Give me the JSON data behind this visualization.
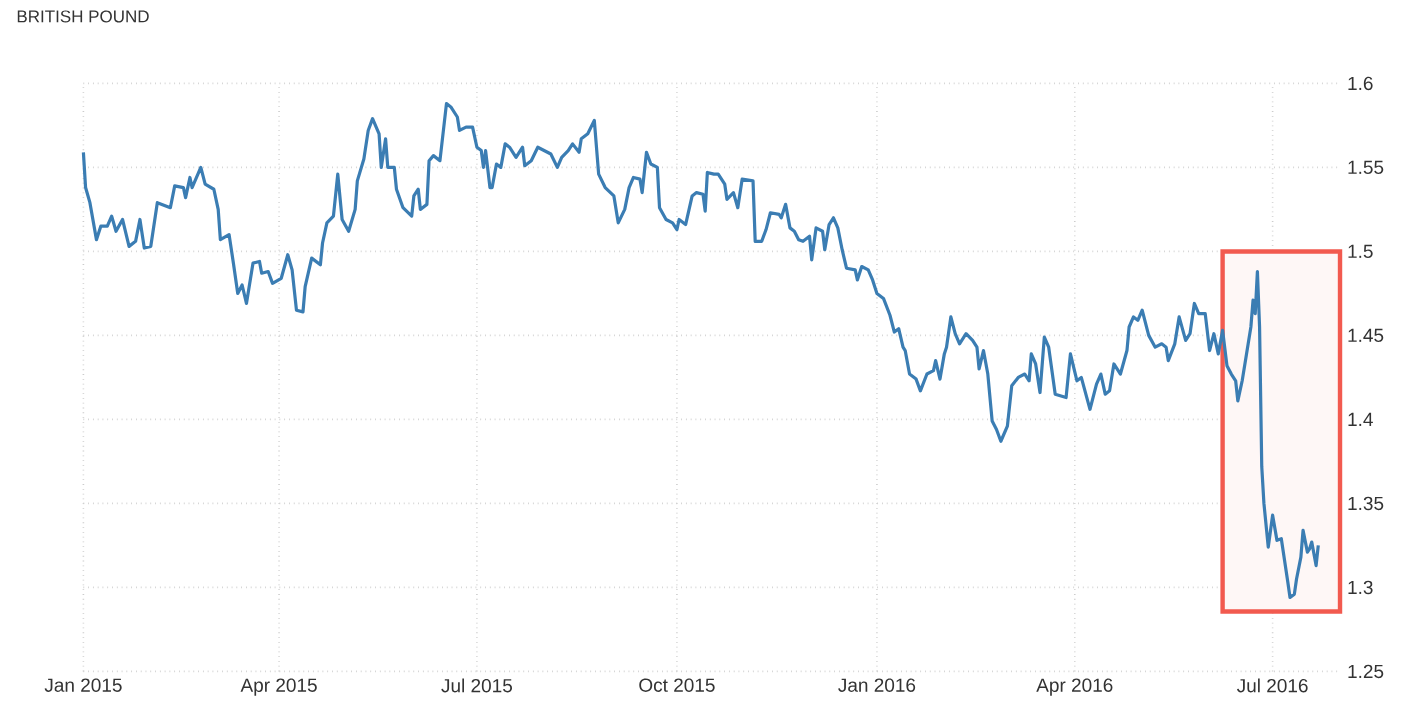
{
  "chart_data": {
    "type": "line",
    "title": "BRITISH POUND",
    "x": [
      "2015-01-01",
      "2015-01-02",
      "2015-01-04",
      "2015-01-07",
      "2015-01-09",
      "2015-01-12",
      "2015-01-14",
      "2015-01-16",
      "2015-01-19",
      "2015-01-22",
      "2015-01-25",
      "2015-01-27",
      "2015-01-29",
      "2015-02-01",
      "2015-02-04",
      "2015-02-10",
      "2015-02-12",
      "2015-02-16",
      "2015-02-17",
      "2015-02-19",
      "2015-02-20",
      "2015-02-24",
      "2015-02-26",
      "2015-03-02",
      "2015-03-04",
      "2015-03-05",
      "2015-03-09",
      "2015-03-11",
      "2015-03-13",
      "2015-03-15",
      "2015-03-17",
      "2015-03-20",
      "2015-03-23",
      "2015-03-24",
      "2015-03-27",
      "2015-03-29",
      "2015-04-02",
      "2015-04-05",
      "2015-04-07",
      "2015-04-09",
      "2015-04-12",
      "2015-04-13",
      "2015-04-16",
      "2015-04-20",
      "2015-04-21",
      "2015-04-23",
      "2015-04-26",
      "2015-04-28",
      "2015-04-30",
      "2015-05-03",
      "2015-05-06",
      "2015-05-07",
      "2015-05-10",
      "2015-05-12",
      "2015-05-14",
      "2015-05-17",
      "2015-05-18",
      "2015-05-20",
      "2015-05-21",
      "2015-05-24",
      "2015-05-25",
      "2015-05-28",
      "2015-06-01",
      "2015-06-02",
      "2015-06-04",
      "2015-06-05",
      "2015-06-08",
      "2015-06-09",
      "2015-06-11",
      "2015-06-14",
      "2015-06-17",
      "2015-06-19",
      "2015-06-22",
      "2015-06-23",
      "2015-06-26",
      "2015-06-29",
      "2015-07-01",
      "2015-07-03",
      "2015-07-04",
      "2015-07-05",
      "2015-07-07",
      "2015-07-08",
      "2015-07-10",
      "2015-07-12",
      "2015-07-14",
      "2015-07-16",
      "2015-07-19",
      "2015-07-22",
      "2015-07-23",
      "2015-07-26",
      "2015-07-29",
      "2015-08-01",
      "2015-08-04",
      "2015-08-07",
      "2015-08-09",
      "2015-08-12",
      "2015-08-14",
      "2015-08-17",
      "2015-08-18",
      "2015-08-21",
      "2015-08-24",
      "2015-08-26",
      "2015-08-29",
      "2015-09-02",
      "2015-09-04",
      "2015-09-07",
      "2015-09-09",
      "2015-09-11",
      "2015-09-14",
      "2015-09-15",
      "2015-09-17",
      "2015-09-19",
      "2015-09-22",
      "2015-09-23",
      "2015-09-26",
      "2015-09-29",
      "2015-10-01",
      "2015-10-02",
      "2015-10-05",
      "2015-10-08",
      "2015-10-10",
      "2015-10-13",
      "2015-10-14",
      "2015-10-15",
      "2015-10-18",
      "2015-10-20",
      "2015-10-23",
      "2015-10-24",
      "2015-10-27",
      "2015-10-29",
      "2015-10-31",
      "2015-11-05",
      "2015-11-06",
      "2015-11-09",
      "2015-11-11",
      "2015-11-13",
      "2015-11-17",
      "2015-11-18",
      "2015-11-20",
      "2015-11-22",
      "2015-11-24",
      "2015-11-26",
      "2015-11-28",
      "2015-12-01",
      "2015-12-02",
      "2015-12-04",
      "2015-12-07",
      "2015-12-08",
      "2015-12-10",
      "2015-12-12",
      "2015-12-14",
      "2015-12-16",
      "2015-12-18",
      "2015-12-22",
      "2015-12-23",
      "2015-12-25",
      "2015-12-28",
      "2015-12-30",
      "2016-01-01",
      "2016-01-04",
      "2016-01-07",
      "2016-01-09",
      "2016-01-11",
      "2016-01-13",
      "2016-01-14",
      "2016-01-16",
      "2016-01-19",
      "2016-01-21",
      "2016-01-24",
      "2016-01-27",
      "2016-01-28",
      "2016-01-30",
      "2016-02-01",
      "2016-02-02",
      "2016-02-04",
      "2016-02-06",
      "2016-02-08",
      "2016-02-11",
      "2016-02-14",
      "2016-02-16",
      "2016-02-17",
      "2016-02-19",
      "2016-02-21",
      "2016-02-23",
      "2016-02-25",
      "2016-02-27",
      "2016-03-01",
      "2016-03-03",
      "2016-03-06",
      "2016-03-09",
      "2016-03-11",
      "2016-03-12",
      "2016-03-14",
      "2016-03-16",
      "2016-03-18",
      "2016-03-20",
      "2016-03-23",
      "2016-03-28",
      "2016-03-30",
      "2016-04-02",
      "2016-04-04",
      "2016-04-08",
      "2016-04-11",
      "2016-04-13",
      "2016-04-15",
      "2016-04-17",
      "2016-04-19",
      "2016-04-22",
      "2016-04-25",
      "2016-04-26",
      "2016-04-28",
      "2016-04-30",
      "2016-05-02",
      "2016-05-05",
      "2016-05-08",
      "2016-05-11",
      "2016-05-13",
      "2016-05-14",
      "2016-05-17",
      "2016-05-19",
      "2016-05-22",
      "2016-05-24",
      "2016-05-26",
      "2016-05-28",
      "2016-05-31",
      "2016-06-02",
      "2016-06-04",
      "2016-06-06",
      "2016-06-08",
      "2016-06-10",
      "2016-06-12",
      "2016-06-14",
      "2016-06-15",
      "2016-06-17",
      "2016-06-19",
      "2016-06-21",
      "2016-06-22",
      "2016-06-23",
      "2016-06-24",
      "2016-06-25",
      "2016-06-26",
      "2016-06-27",
      "2016-06-29",
      "2016-07-01",
      "2016-07-03",
      "2016-07-05",
      "2016-07-08",
      "2016-07-09",
      "2016-07-11",
      "2016-07-12",
      "2016-07-14",
      "2016-07-15",
      "2016-07-17",
      "2016-07-18",
      "2016-07-19",
      "2016-07-21",
      "2016-07-22"
    ],
    "series": [
      {
        "color": "#3b7db3",
        "values": [
          1.559,
          1.538,
          1.529,
          1.507,
          1.515,
          1.515,
          1.521,
          1.512,
          1.519,
          1.503,
          1.506,
          1.519,
          1.502,
          1.503,
          1.529,
          1.526,
          1.539,
          1.538,
          1.532,
          1.544,
          1.538,
          1.55,
          1.54,
          1.537,
          1.525,
          1.507,
          1.51,
          1.493,
          1.475,
          1.48,
          1.469,
          1.493,
          1.494,
          1.487,
          1.488,
          1.481,
          1.484,
          1.498,
          1.489,
          1.465,
          1.464,
          1.479,
          1.496,
          1.492,
          1.505,
          1.517,
          1.521,
          1.546,
          1.519,
          1.512,
          1.525,
          1.542,
          1.555,
          1.572,
          1.579,
          1.57,
          1.55,
          1.567,
          1.55,
          1.55,
          1.537,
          1.526,
          1.521,
          1.533,
          1.537,
          1.525,
          1.528,
          1.554,
          1.557,
          1.554,
          1.588,
          1.586,
          1.58,
          1.572,
          1.574,
          1.574,
          1.562,
          1.56,
          1.55,
          1.56,
          1.538,
          1.538,
          1.552,
          1.55,
          1.564,
          1.562,
          1.556,
          1.562,
          1.551,
          1.554,
          1.562,
          1.56,
          1.558,
          1.55,
          1.556,
          1.56,
          1.564,
          1.559,
          1.567,
          1.57,
          1.578,
          1.546,
          1.538,
          1.533,
          1.517,
          1.525,
          1.538,
          1.544,
          1.543,
          1.535,
          1.559,
          1.552,
          1.55,
          1.526,
          1.519,
          1.517,
          1.513,
          1.519,
          1.516,
          1.533,
          1.535,
          1.534,
          1.524,
          1.547,
          1.546,
          1.546,
          1.54,
          1.531,
          1.535,
          1.526,
          1.543,
          1.542,
          1.506,
          1.506,
          1.513,
          1.523,
          1.522,
          1.52,
          1.528,
          1.514,
          1.512,
          1.507,
          1.506,
          1.509,
          1.495,
          1.514,
          1.512,
          1.501,
          1.516,
          1.52,
          1.514,
          1.501,
          1.49,
          1.489,
          1.483,
          1.491,
          1.489,
          1.483,
          1.475,
          1.472,
          1.462,
          1.452,
          1.454,
          1.443,
          1.441,
          1.427,
          1.424,
          1.417,
          1.427,
          1.429,
          1.435,
          1.424,
          1.439,
          1.443,
          1.461,
          1.451,
          1.445,
          1.451,
          1.447,
          1.443,
          1.43,
          1.441,
          1.427,
          1.399,
          1.394,
          1.387,
          1.396,
          1.42,
          1.425,
          1.427,
          1.423,
          1.439,
          1.433,
          1.416,
          1.449,
          1.443,
          1.415,
          1.413,
          1.439,
          1.423,
          1.425,
          1.406,
          1.421,
          1.427,
          1.415,
          1.417,
          1.433,
          1.427,
          1.441,
          1.455,
          1.461,
          1.459,
          1.465,
          1.45,
          1.443,
          1.445,
          1.443,
          1.435,
          1.445,
          1.461,
          1.447,
          1.451,
          1.469,
          1.463,
          1.463,
          1.441,
          1.451,
          1.439,
          1.453,
          1.432,
          1.427,
          1.423,
          1.411,
          1.423,
          1.439,
          1.455,
          1.471,
          1.463,
          1.488,
          1.455,
          1.372,
          1.35,
          1.324,
          1.343,
          1.328,
          1.329,
          1.303,
          1.294,
          1.296,
          1.305,
          1.318,
          1.334,
          1.321,
          1.323,
          1.327,
          1.313,
          1.325
        ]
      }
    ],
    "xlim": [
      "2015-01-01",
      "2016-08-01"
    ],
    "xticks": [
      {
        "value": "2015-01-01",
        "label": "Jan 2015"
      },
      {
        "value": "2015-04-01",
        "label": "Apr 2015"
      },
      {
        "value": "2015-07-01",
        "label": "Jul 2015"
      },
      {
        "value": "2015-10-01",
        "label": "Oct 2015"
      },
      {
        "value": "2016-01-01",
        "label": "Jan 2016"
      },
      {
        "value": "2016-04-01",
        "label": "Apr 2016"
      },
      {
        "value": "2016-07-01",
        "label": "Jul 2016"
      }
    ],
    "ylim": [
      1.25,
      1.6
    ],
    "yticks": [
      1.25,
      1.3,
      1.35,
      1.4,
      1.45,
      1.5,
      1.55,
      1.6
    ],
    "grid": true,
    "marker": "none",
    "line_style": "solid",
    "bands": [
      {
        "axis": "x",
        "from": "2016-06-08",
        "to": "2016-08-01",
        "color": "#f25a4f"
      }
    ]
  }
}
